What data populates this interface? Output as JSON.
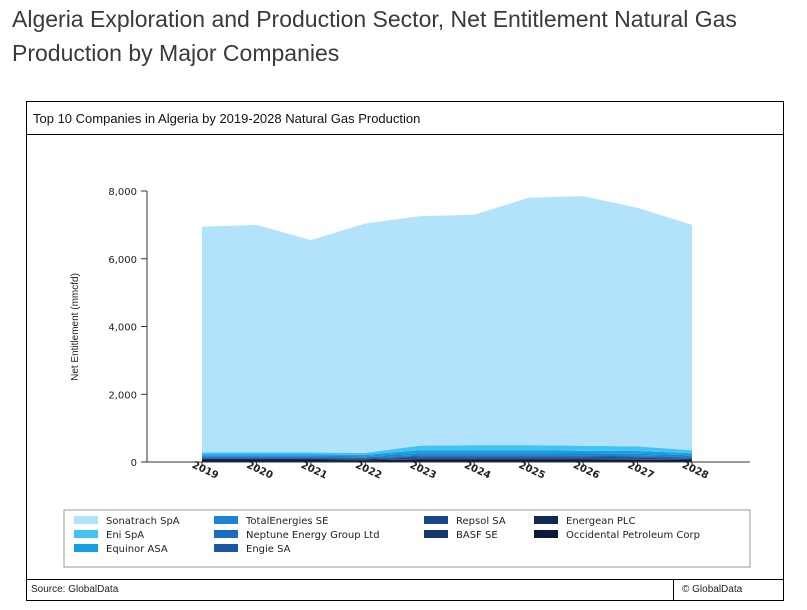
{
  "page": {
    "title": "Algeria Exploration and Production Sector, Net Entitlement Natural Gas Production by Major Companies",
    "panel_title": "Top 10 Companies in Algeria by 2019-2028 Natural Gas Production",
    "source": "Source: GlobalData",
    "copyright": "© GlobalData"
  },
  "chart_data": {
    "type": "area",
    "stacked": true,
    "title": "Top 10 Companies in Algeria by 2019-2028 Natural Gas Production",
    "xlabel": "",
    "ylabel": "Net Entitlement (mmcfd)",
    "ylim": [
      0,
      8000
    ],
    "yticks": [
      0,
      2000,
      4000,
      6000,
      8000
    ],
    "ytick_labels": [
      "0",
      "2,000",
      "4,000",
      "6,000",
      "8,000"
    ],
    "x": [
      "2019",
      "2020",
      "2021",
      "2022",
      "2023",
      "2024",
      "2025",
      "2026",
      "2027",
      "2028"
    ],
    "grid": false,
    "legend_position": "bottom",
    "series": [
      {
        "name": "Occidental Petroleum Corp",
        "color": "#0b1a3a",
        "values": [
          60,
          60,
          60,
          55,
          70,
          70,
          70,
          70,
          65,
          60
        ]
      },
      {
        "name": "Energean PLC",
        "color": "#102a55",
        "values": [
          15,
          15,
          15,
          15,
          20,
          20,
          20,
          20,
          20,
          15
        ]
      },
      {
        "name": "BASF SE",
        "color": "#14386e",
        "values": [
          15,
          15,
          15,
          15,
          20,
          20,
          20,
          20,
          20,
          15
        ]
      },
      {
        "name": "Repsol SA",
        "color": "#17468a",
        "values": [
          20,
          20,
          20,
          20,
          25,
          25,
          25,
          25,
          25,
          20
        ]
      },
      {
        "name": "Engie SA",
        "color": "#1a58a6",
        "values": [
          20,
          20,
          20,
          20,
          30,
          30,
          30,
          30,
          30,
          25
        ]
      },
      {
        "name": "Neptune Energy Group Ltd",
        "color": "#1b6cbf",
        "values": [
          20,
          20,
          20,
          20,
          30,
          30,
          30,
          30,
          30,
          25
        ]
      },
      {
        "name": "TotalEnergies SE",
        "color": "#1c84d4",
        "values": [
          30,
          30,
          30,
          30,
          60,
          60,
          60,
          55,
          55,
          40
        ]
      },
      {
        "name": "Equinor ASA",
        "color": "#139fe0",
        "values": [
          40,
          40,
          40,
          40,
          90,
          90,
          90,
          85,
          80,
          60
        ]
      },
      {
        "name": "Eni SpA",
        "color": "#45c2f2",
        "values": [
          60,
          60,
          60,
          55,
          140,
          155,
          155,
          145,
          135,
          85
        ]
      },
      {
        "name": "Sonatrach SpA",
        "color": "#b3e3fb",
        "values": [
          6670,
          6720,
          6270,
          6770,
          6775,
          6800,
          7300,
          7370,
          7040,
          6655
        ]
      }
    ],
    "legend_order": [
      "Sonatrach SpA",
      "TotalEnergies SE",
      "Repsol SA",
      "Energean PLC",
      "Eni SpA",
      "Neptune Energy Group Ltd",
      "BASF SE",
      "Occidental Petroleum Corp",
      "Equinor ASA",
      "Engie SA"
    ]
  }
}
